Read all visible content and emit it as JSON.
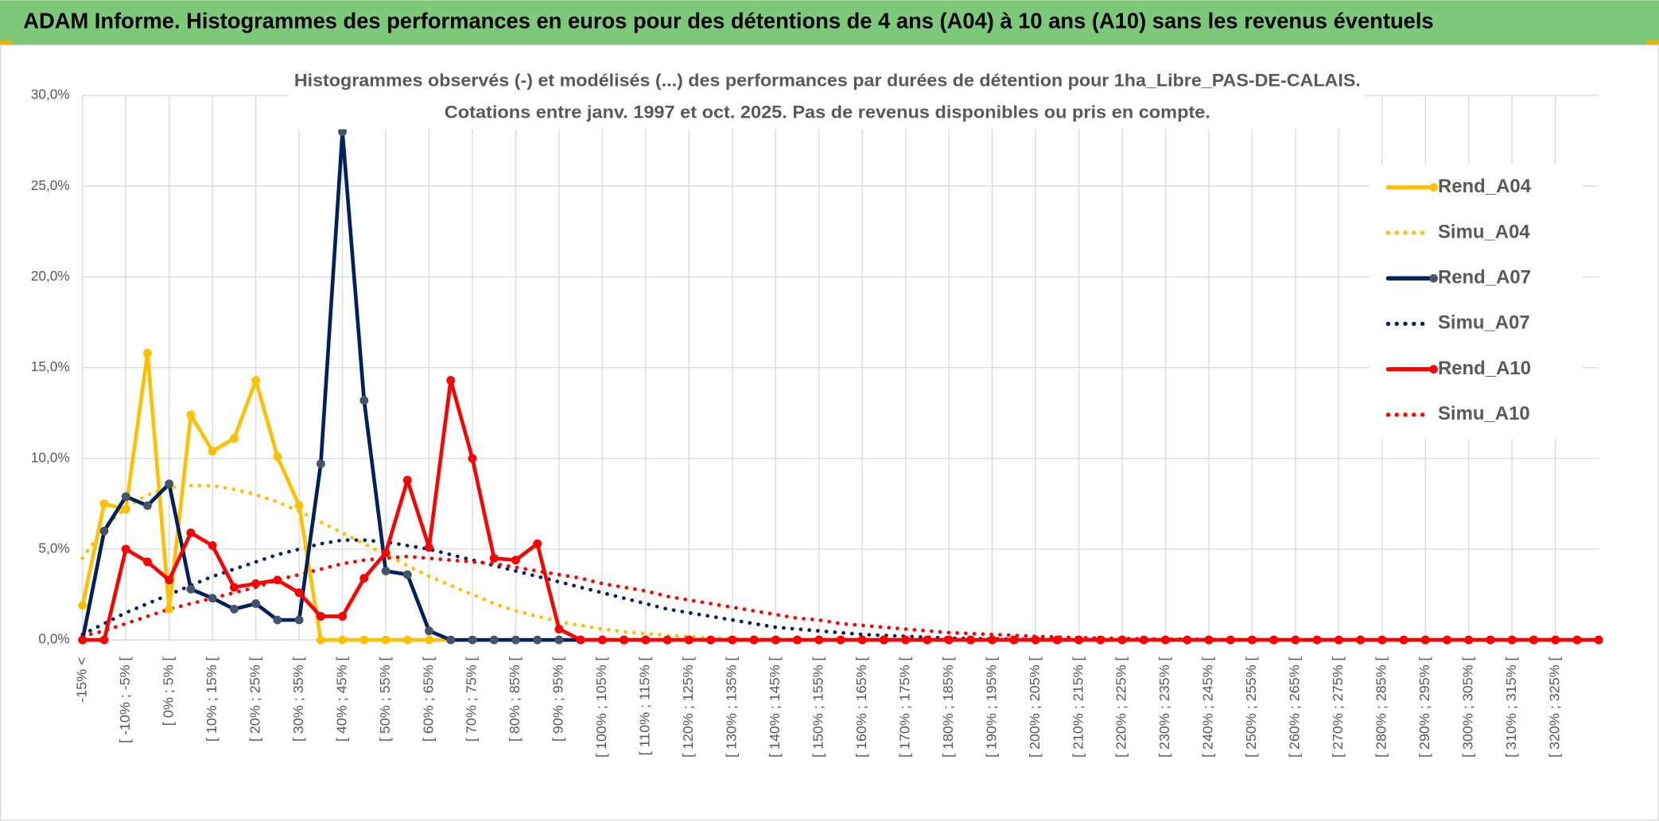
{
  "header": {
    "title": "ADAM Informe. Histogrammes des performances en euros pour des détentions de 4 ans (A04) à 10 ans (A10) sans les revenus éventuels"
  },
  "chart_data": {
    "type": "line",
    "title": "Histogrammes observés (-) et modélisés (...) des performances par durées de détention pour 1ha_Libre_PAS-DE-CALAIS.",
    "subtitle": "Cotations entre janv. 1997 et oct. 2025. Pas de revenus disponibles ou pris en compte.",
    "categories": [
      "-15% <",
      null,
      "[ -10% ; -5% [",
      null,
      "[ 0% ; 5% [",
      null,
      "[ 10% ; 15% [",
      null,
      "[ 20% ; 25% [",
      null,
      "[ 30% ; 35% [",
      null,
      "[ 40% ; 45% [",
      null,
      "[ 50% ; 55% [",
      null,
      "[ 60% ; 65% [",
      null,
      "[ 70% ; 75% [",
      null,
      "[ 80% ; 85% [",
      null,
      "[ 90% ; 95% [",
      null,
      "[ 100% ; 105% [",
      null,
      "[ 110% ; 115% [",
      null,
      "[ 120% ; 125% [",
      null,
      "[ 130% ; 135% [",
      null,
      "[ 140% ; 145% [",
      null,
      "[ 150% ; 155% [",
      null,
      "[ 160% ; 165% [",
      null,
      "[ 170% ; 175% [",
      null,
      "[ 180% ; 185% [",
      null,
      "[ 190% ; 195% [",
      null,
      "[ 200% ; 205% [",
      null,
      "[ 210% ; 215% [",
      null,
      "[ 220% ; 225% [",
      null,
      "[ 230% ; 235% [",
      null,
      "[ 240% ; 245% [",
      null,
      "[ 250% ; 255% [",
      null,
      "[ 260% ; 265% [",
      null,
      "[ 270% ; 275% [",
      null,
      "[ 280% ; 285% [",
      null,
      "[ 290% ; 295% [",
      null,
      "[ 300% ; 305% [",
      null,
      "[ 310% ; 315% [",
      null,
      "[ 320% ; 325% [",
      null,
      null
    ],
    "series": [
      {
        "name": "Rend_A04",
        "color": "#FFC000",
        "style": "solid",
        "marker": true,
        "marker_color": "#FFC000",
        "values": [
          1.9,
          7.5,
          7.2,
          15.8,
          1.7,
          12.4,
          10.4,
          11.1,
          14.3,
          10.1,
          7.4,
          0,
          0,
          0,
          0,
          0,
          0,
          0,
          0,
          0,
          0,
          0,
          0,
          0,
          0,
          0,
          0,
          0,
          0,
          0,
          0,
          0,
          0,
          0,
          0,
          0,
          0,
          0,
          0,
          0,
          0,
          0,
          0,
          0,
          0,
          0,
          0,
          0,
          0,
          0,
          0,
          0,
          0,
          0,
          0,
          0,
          0,
          0,
          0,
          0,
          0,
          0,
          0,
          0,
          0,
          0,
          0,
          0,
          0,
          0,
          0
        ]
      },
      {
        "name": "Simu_A04",
        "color": "#FFC000",
        "style": "dotted",
        "marker": false,
        "values": [
          4.5,
          6.2,
          7.3,
          8.0,
          8.4,
          8.5,
          8.5,
          8.3,
          8.0,
          7.6,
          7.1,
          6.5,
          5.9,
          5.3,
          4.7,
          4.1,
          3.5,
          3.0,
          2.5,
          2.0,
          1.6,
          1.3,
          1.0,
          0.8,
          0.6,
          0.45,
          0.35,
          0.25,
          0.18,
          0.12,
          0.08,
          0.05,
          0.03,
          0.02,
          0.01,
          0,
          0,
          0,
          0,
          0,
          0,
          0,
          0,
          0,
          0,
          0,
          0,
          0,
          0,
          0,
          0,
          0,
          0,
          0,
          0,
          0,
          0,
          0,
          0,
          0,
          0,
          0,
          0,
          0,
          0,
          0,
          0,
          0,
          0,
          0,
          0
        ]
      },
      {
        "name": "Rend_A07",
        "color": "#002060",
        "style": "solid",
        "marker": true,
        "marker_color": "#44546A",
        "values": [
          0,
          6.0,
          7.9,
          7.4,
          8.6,
          2.8,
          2.3,
          1.7,
          2.0,
          1.1,
          1.1,
          9.7,
          28.0,
          13.2,
          3.8,
          3.6,
          0.5,
          0,
          0,
          0,
          0,
          0,
          0,
          0,
          0,
          0,
          0,
          0,
          0,
          0,
          0,
          0,
          0,
          0,
          0,
          0,
          0,
          0,
          0,
          0,
          0,
          0,
          0,
          0,
          0,
          0,
          0,
          0,
          0,
          0,
          0,
          0,
          0,
          0,
          0,
          0,
          0,
          0,
          0,
          0,
          0,
          0,
          0,
          0,
          0,
          0,
          0,
          0,
          0,
          0,
          0
        ]
      },
      {
        "name": "Simu_A07",
        "color": "#002060",
        "style": "dotted",
        "marker": false,
        "values": [
          0.3,
          0.9,
          1.5,
          2.0,
          2.5,
          3.0,
          3.5,
          3.9,
          4.3,
          4.7,
          5.0,
          5.3,
          5.5,
          5.5,
          5.4,
          5.2,
          5.0,
          4.7,
          4.4,
          4.1,
          3.8,
          3.5,
          3.2,
          2.9,
          2.6,
          2.3,
          2.0,
          1.7,
          1.5,
          1.3,
          1.1,
          0.9,
          0.7,
          0.6,
          0.5,
          0.4,
          0.3,
          0.25,
          0.2,
          0.15,
          0.1,
          0.08,
          0.06,
          0.04,
          0.03,
          0.02,
          0.01,
          0,
          0,
          0,
          0,
          0,
          0,
          0,
          0,
          0,
          0,
          0,
          0,
          0,
          0,
          0,
          0,
          0,
          0,
          0,
          0,
          0,
          0,
          0,
          0
        ]
      },
      {
        "name": "Rend_A10",
        "color": "#FF0000",
        "style": "solid",
        "marker": true,
        "marker_color": "#FF0000",
        "values": [
          0,
          0,
          5.0,
          4.3,
          3.3,
          5.9,
          5.2,
          2.9,
          3.1,
          3.3,
          2.6,
          1.3,
          1.3,
          3.4,
          4.8,
          8.8,
          5.1,
          14.3,
          10.0,
          4.5,
          4.4,
          5.3,
          0.6,
          0,
          0,
          0,
          0,
          0,
          0,
          0,
          0,
          0,
          0,
          0,
          0,
          0,
          0,
          0,
          0,
          0,
          0,
          0,
          0,
          0,
          0,
          0,
          0,
          0,
          0,
          0,
          0,
          0,
          0,
          0,
          0,
          0,
          0,
          0,
          0,
          0,
          0,
          0,
          0,
          0,
          0,
          0,
          0,
          0,
          0,
          0,
          0
        ]
      },
      {
        "name": "Simu_A10",
        "color": "#FF0000",
        "style": "dotted",
        "marker": false,
        "values": [
          0.2,
          0.5,
          0.9,
          1.3,
          1.7,
          2.0,
          2.3,
          2.6,
          2.9,
          3.3,
          3.6,
          3.9,
          4.2,
          4.4,
          4.5,
          4.6,
          4.5,
          4.4,
          4.3,
          4.2,
          4.0,
          3.8,
          3.6,
          3.4,
          3.1,
          2.9,
          2.7,
          2.4,
          2.2,
          2.0,
          1.8,
          1.6,
          1.4,
          1.2,
          1.1,
          0.9,
          0.8,
          0.7,
          0.6,
          0.5,
          0.4,
          0.35,
          0.3,
          0.25,
          0.2,
          0.16,
          0.13,
          0.1,
          0.08,
          0.06,
          0.05,
          0.04,
          0.03,
          0.02,
          0.015,
          0.01,
          0,
          0,
          0,
          0,
          0,
          0,
          0,
          0,
          0,
          0,
          0,
          0,
          0,
          0,
          0
        ]
      }
    ],
    "ylim": [
      0,
      30
    ],
    "yticks": [
      {
        "value": 0,
        "label": "0,0%"
      },
      {
        "value": 5,
        "label": "5,0%"
      },
      {
        "value": 10,
        "label": "10,0%"
      },
      {
        "value": 15,
        "label": "15,0%"
      },
      {
        "value": 20,
        "label": "20,0%"
      },
      {
        "value": 25,
        "label": "25,0%"
      },
      {
        "value": 30,
        "label": "30,0%"
      }
    ],
    "grid": true,
    "legend": "right"
  }
}
